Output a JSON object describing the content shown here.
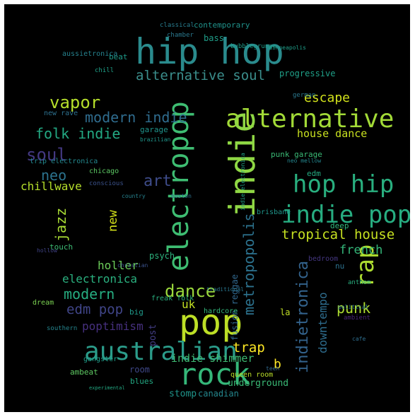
{
  "wordcloud": {
    "background": "#000000",
    "words": [
      {
        "text": "hip hop",
        "color": "#2a8b8d"
      },
      {
        "text": "alternative soul",
        "color": "#3b8e8c"
      },
      {
        "text": "alternative",
        "color": "#a2da37"
      },
      {
        "text": "indie",
        "color": "#8fd744"
      },
      {
        "text": "hop hip",
        "color": "#29af7f"
      },
      {
        "text": "indie pop",
        "color": "#27ad81"
      },
      {
        "text": "electropop",
        "color": "#3ebd72"
      },
      {
        "text": "pop",
        "color": "#bddf26"
      },
      {
        "text": "australian",
        "color": "#2b9c8a"
      },
      {
        "text": "rock",
        "color": "#35b779"
      },
      {
        "text": "modern indie",
        "color": "#2f6c8e"
      },
      {
        "text": "folk indie",
        "color": "#23a983"
      },
      {
        "text": "vapor",
        "color": "#b5de2b"
      },
      {
        "text": "soul",
        "color": "#443983"
      },
      {
        "text": "neo",
        "color": "#2c738e"
      },
      {
        "text": "art",
        "color": "#3e4c8a"
      },
      {
        "text": "jazz",
        "color": "#a8db34"
      },
      {
        "text": "chillwave",
        "color": "#b5de2b"
      },
      {
        "text": "escape",
        "color": "#d2e21b"
      },
      {
        "text": "house dance",
        "color": "#c8e020"
      },
      {
        "text": "tropical house",
        "color": "#c5e021"
      },
      {
        "text": "rap",
        "color": "#addc30"
      },
      {
        "text": "dance",
        "color": "#9bd93c"
      },
      {
        "text": "modern",
        "color": "#26ad81"
      },
      {
        "text": "edm pop",
        "color": "#404588"
      },
      {
        "text": "electronica",
        "color": "#2ab07f"
      },
      {
        "text": "metropopolis",
        "color": "#2c728e"
      },
      {
        "text": "indietronica",
        "color": "#33638d"
      },
      {
        "text": "downtempo",
        "color": "#2e6d8e"
      },
      {
        "text": "punk",
        "color": "#addc30"
      },
      {
        "text": "poptimism",
        "color": "#46307e"
      },
      {
        "text": "trap",
        "color": "#fde725"
      },
      {
        "text": "uk",
        "color": "#c2df23"
      },
      {
        "text": "b",
        "color": "#fde725"
      },
      {
        "text": "indie shimmer",
        "color": "#3fbc73"
      },
      {
        "text": "underground",
        "color": "#3aba76"
      },
      {
        "text": "stomp",
        "color": "#1f958b"
      },
      {
        "text": "canadian",
        "color": "#24878e"
      },
      {
        "text": "room",
        "color": "#3f4889"
      },
      {
        "text": "holler",
        "color": "#6ccd5a"
      },
      {
        "text": "new",
        "color": "#d5e21a"
      },
      {
        "text": "french",
        "color": "#34b679"
      },
      {
        "text": "fusion reggae",
        "color": "#31688e"
      },
      {
        "text": "contemporary",
        "color": "#20938c"
      },
      {
        "text": "bass",
        "color": "#1f9e89"
      },
      {
        "text": "progressive",
        "color": "#1fa088"
      },
      {
        "text": "beat",
        "color": "#1e9b8a"
      },
      {
        "text": "ambeat",
        "color": "#5ec962"
      },
      {
        "text": "garage",
        "color": "#1f948c"
      },
      {
        "text": "trip electronica",
        "color": "#23888e"
      },
      {
        "text": "punk garage",
        "color": "#3aba76"
      },
      {
        "text": "edm",
        "color": "#25ab82"
      },
      {
        "text": "psych",
        "color": "#2db27d"
      },
      {
        "text": "deep",
        "color": "#31b57b"
      },
      {
        "text": "touch",
        "color": "#3dbc74"
      },
      {
        "text": "nu",
        "color": "#2c728e"
      },
      {
        "text": "blues",
        "color": "#23a983"
      },
      {
        "text": "queen room",
        "color": "#bade28"
      },
      {
        "text": "la",
        "color": "#c0df25"
      },
      {
        "text": "hardcore",
        "color": "#32b67a"
      },
      {
        "text": "big",
        "color": "#1f9a8a"
      },
      {
        "text": "brisbane",
        "color": "#1f968b"
      },
      {
        "text": "bubblegrunge",
        "color": "#1e9c89"
      },
      {
        "text": "classical",
        "color": "#287c8e"
      },
      {
        "text": "chamber",
        "color": "#2a788e"
      },
      {
        "text": "aussietronica",
        "color": "#26828e"
      },
      {
        "text": "new rave",
        "color": "#2d708e"
      },
      {
        "text": "conscious",
        "color": "#3b528b"
      },
      {
        "text": "chicago",
        "color": "#5cc863"
      },
      {
        "text": "freak folk",
        "color": "#2ab07f"
      },
      {
        "text": "dream",
        "color": "#7ad151"
      },
      {
        "text": "gangster",
        "color": "#1f9e89"
      },
      {
        "text": "southern",
        "color": "#25858e"
      },
      {
        "text": "bedroom",
        "color": "#453781"
      },
      {
        "text": "anthem",
        "color": "#29af7f"
      },
      {
        "text": "traditional",
        "color": "#2a768e"
      },
      {
        "text": "country",
        "color": "#26828e"
      },
      {
        "text": "boston",
        "color": "#2d708e"
      },
      {
        "text": "hollow",
        "color": "#414487"
      },
      {
        "text": "christian",
        "color": "#3b528b"
      },
      {
        "text": "ambient",
        "color": "#482576"
      },
      {
        "text": "political",
        "color": "#2b748e"
      },
      {
        "text": "cafe",
        "color": "#2e6e8e"
      },
      {
        "text": "teen",
        "color": "#31688e"
      },
      {
        "text": "experimental",
        "color": "#23a983"
      },
      {
        "text": "post",
        "color": "#433e85"
      },
      {
        "text": "german",
        "color": "#2a788e"
      },
      {
        "text": "brazilian",
        "color": "#1f958b"
      },
      {
        "text": "indie electronica",
        "color": "#20a386"
      },
      {
        "text": "chill",
        "color": "#1fa188"
      },
      {
        "text": "minneapolis",
        "color": "#1f9e89"
      },
      {
        "text": "neo mellow",
        "color": "#24868e"
      }
    ]
  }
}
